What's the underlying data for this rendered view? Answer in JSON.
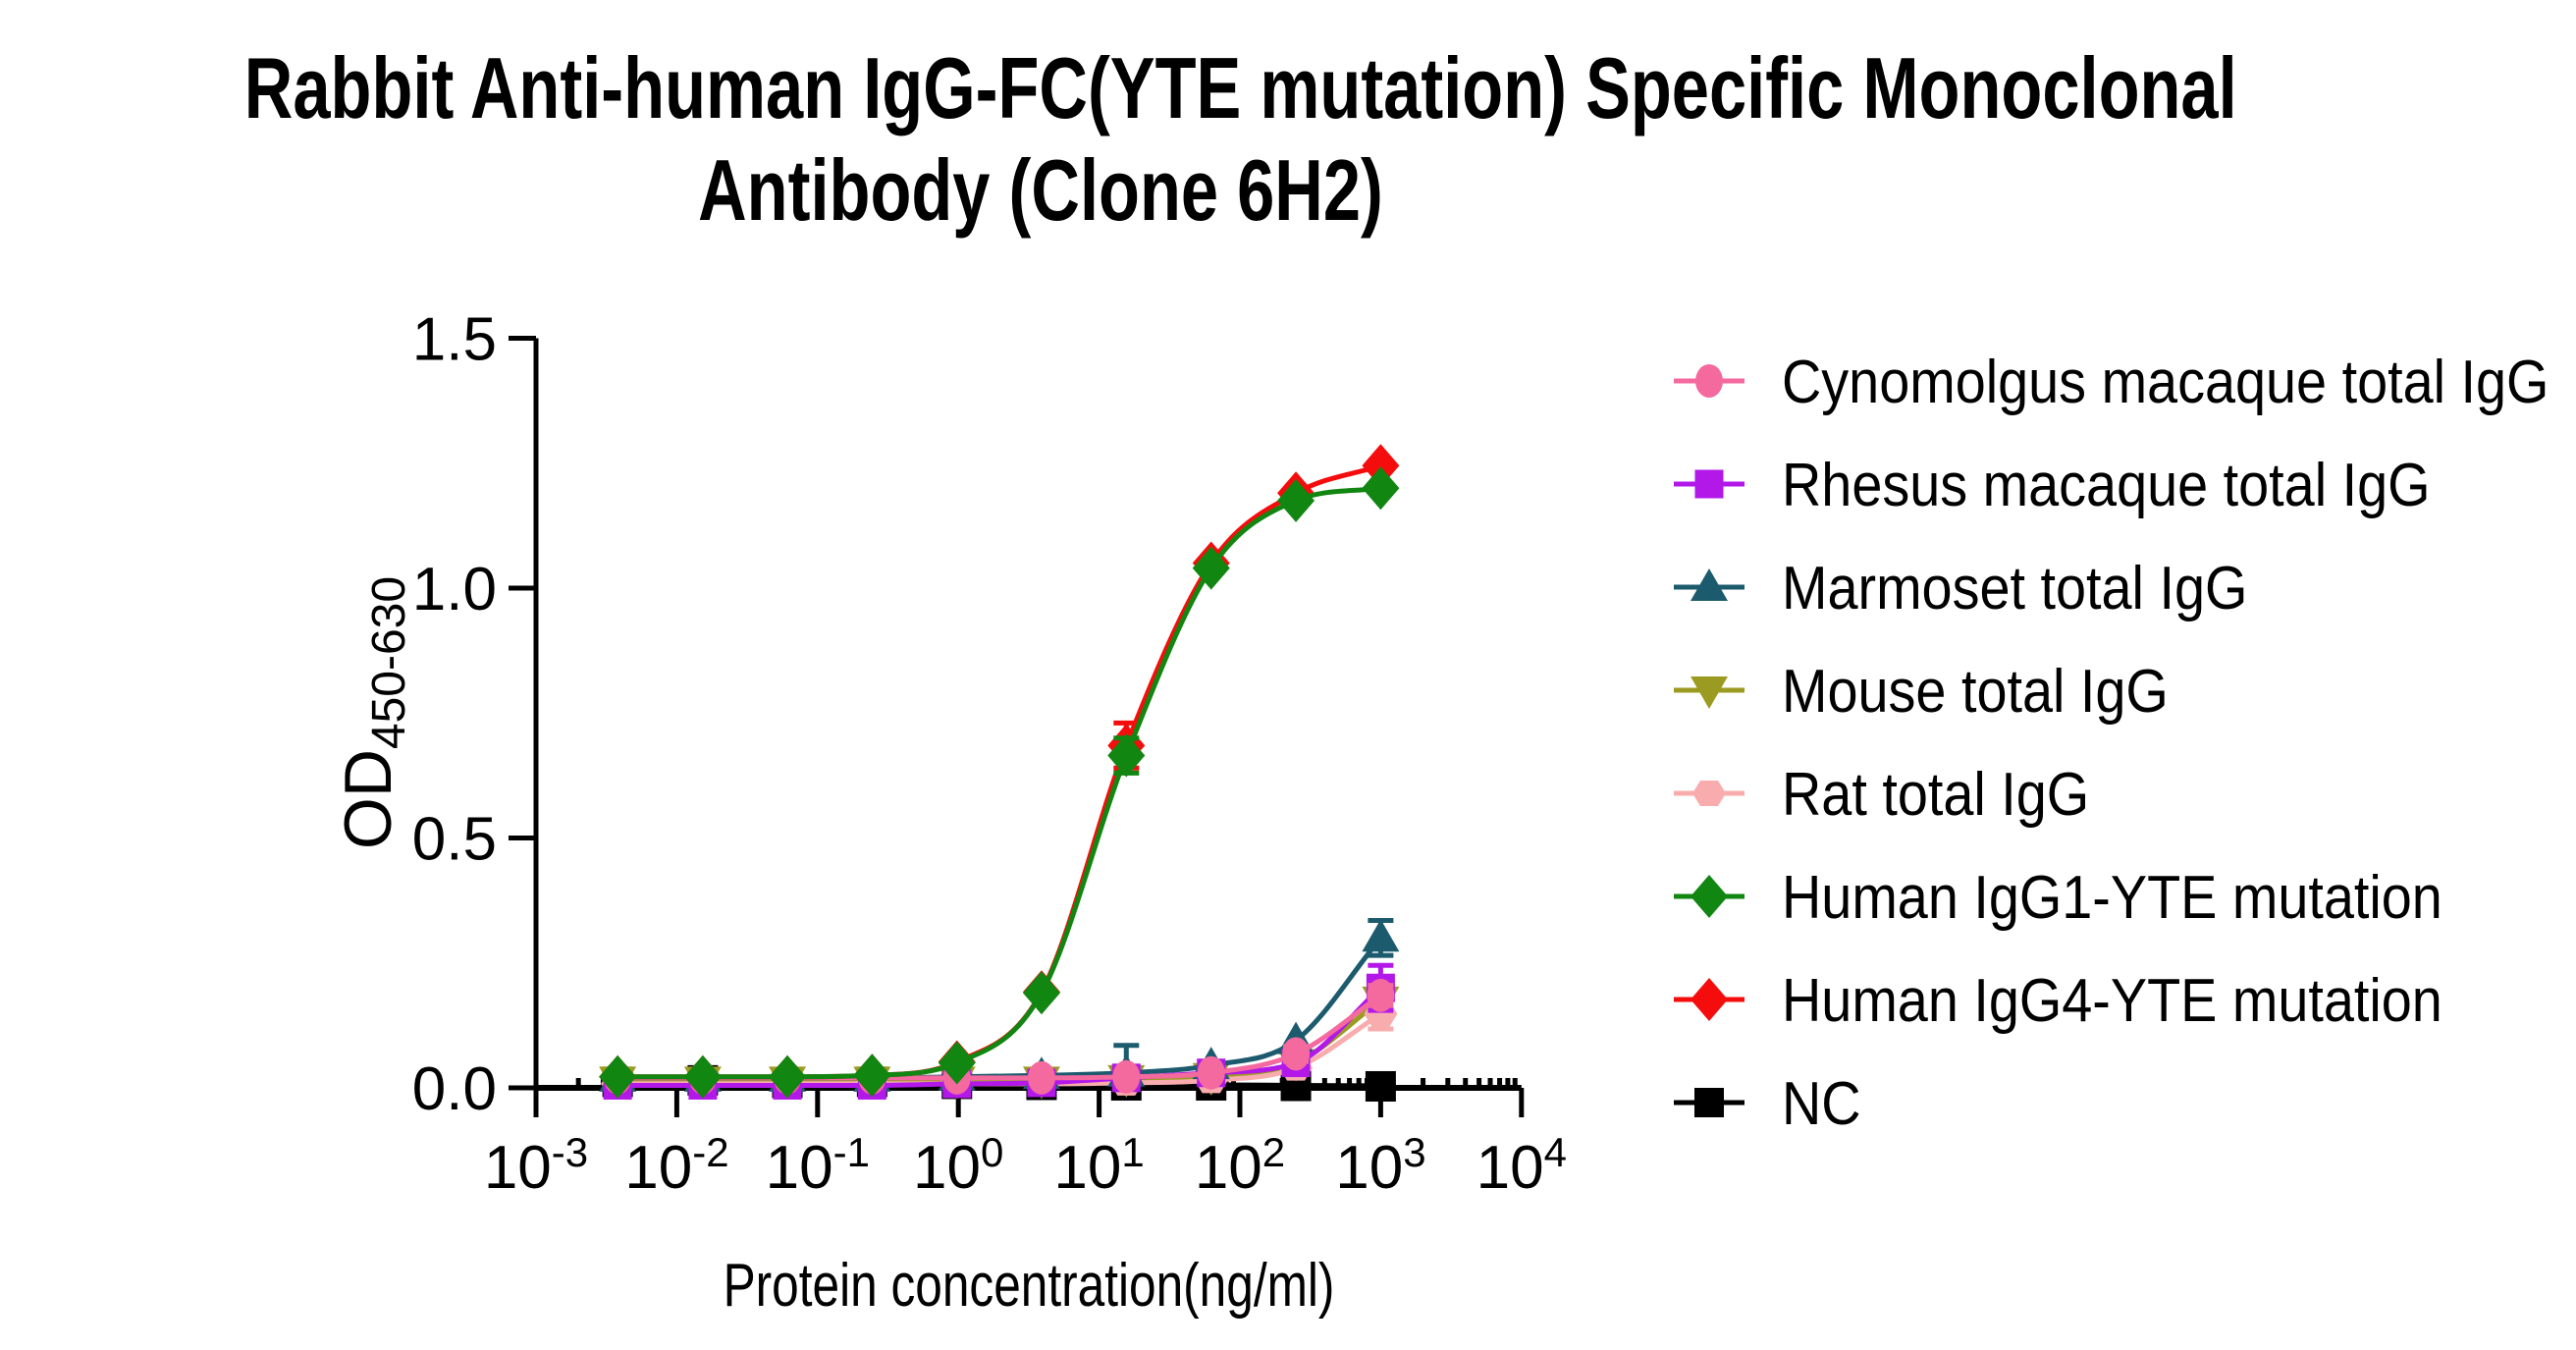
{
  "figure": {
    "title": {
      "line1": "Rabbit Anti-human IgG-FC(YTE mutation) Specific Monoclonal",
      "line2": "Antibody  (Clone 6H2)"
    }
  },
  "chart_data": {
    "type": "line",
    "x_scale": "log10",
    "title": "Rabbit Anti-human IgG-FC(YTE mutation) Specific Monoclonal Antibody (Clone 6H2)",
    "xlabel": "Protein concentration(ng/ml)",
    "ylabel": {
      "main": "OD",
      "subscript": "450-630"
    },
    "xlim_exponents": [
      -3,
      4
    ],
    "x_major_tick_exponents": [
      "-3",
      "-2",
      "-1",
      "0",
      "1",
      "2",
      "3",
      "4"
    ],
    "x_tick_base": "10",
    "y_ticks": [
      "0.0",
      "0.5",
      "1.0",
      "1.5"
    ],
    "ylim": [
      0,
      1.5
    ],
    "grid": false,
    "legend_position": "right",
    "x": [
      0.0038,
      0.0153,
      0.061,
      0.244,
      0.977,
      3.9,
      15.6,
      62.5,
      250,
      1000
    ],
    "series": [
      {
        "name": "Cynomolgus macaque total IgG",
        "color": "#F4699E",
        "marker": "circle",
        "values": [
          0.02,
          0.02,
          0.02,
          0.02,
          0.02,
          0.02,
          0.022,
          0.03,
          0.068,
          0.185
        ],
        "errors": {
          "8": [
            0.015,
            0.015
          ],
          "9": [
            0.02,
            0.02
          ]
        }
      },
      {
        "name": "Rhesus macaque total IgG",
        "color": "#B219E8",
        "marker": "square",
        "values": [
          0.005,
          0.005,
          0.005,
          0.005,
          0.008,
          0.01,
          0.02,
          0.03,
          0.05,
          0.2
        ],
        "errors": {
          "6": [
            0.02,
            0.02
          ],
          "9": [
            0.045,
            0.045
          ]
        }
      },
      {
        "name": "Marmoset total IgG",
        "color": "#1C5B6E",
        "marker": "triangle-up",
        "values": [
          0.02,
          0.02,
          0.02,
          0.02,
          0.022,
          0.025,
          0.03,
          0.045,
          0.095,
          0.3
        ],
        "errors": {
          "6": [
            0.055,
            0.02
          ],
          "9": [
            0.035,
            0.035
          ]
        }
      },
      {
        "name": "Mouse total IgG",
        "color": "#9B9B21",
        "marker": "triangle-down",
        "values": [
          0.015,
          0.015,
          0.015,
          0.015,
          0.015,
          0.015,
          0.018,
          0.022,
          0.05,
          0.175
        ],
        "errors": {}
      },
      {
        "name": "Rat total IgG",
        "color": "#F9ACAE",
        "marker": "hexagon",
        "values": [
          0.008,
          0.008,
          0.008,
          0.008,
          0.008,
          0.008,
          0.01,
          0.015,
          0.04,
          0.148
        ],
        "errors": {
          "9": [
            0.012,
            0.03
          ]
        }
      },
      {
        "name": "Human IgG1-YTE mutation",
        "color": "#118611",
        "marker": "diamond",
        "values": [
          0.022,
          0.022,
          0.022,
          0.025,
          0.05,
          0.19,
          0.665,
          1.04,
          1.175,
          1.2
        ],
        "errors": {
          "6": [
            0.035,
            0.035
          ]
        }
      },
      {
        "name": "Human IgG4-YTE mutation",
        "color": "#F50D0D",
        "marker": "diamond",
        "values": [
          0.022,
          0.022,
          0.022,
          0.025,
          0.052,
          0.192,
          0.685,
          1.05,
          1.19,
          1.245
        ],
        "errors": {
          "6": [
            0.045,
            0.045
          ]
        }
      },
      {
        "name": "NC",
        "color": "#000000",
        "marker": "square",
        "marker_size": 31,
        "values": [
          0.012,
          0.015,
          0.01,
          0.012,
          0.008,
          0.006,
          0.005,
          0.005,
          0.004,
          0.003
        ],
        "errors": {}
      }
    ],
    "draw_order": [
      7,
      3,
      4,
      2,
      1,
      0,
      6,
      5
    ]
  }
}
